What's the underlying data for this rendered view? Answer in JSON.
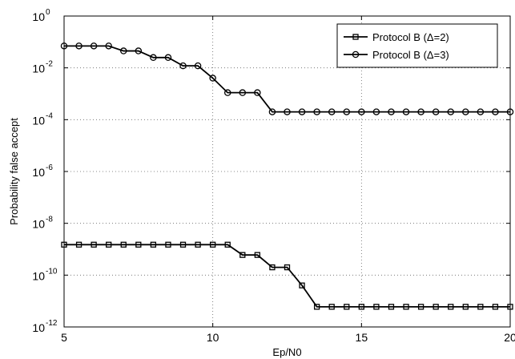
{
  "chart_data": {
    "type": "line",
    "title": "",
    "xlabel": "Ep/N0",
    "ylabel": "Probability false accept",
    "xlim": [
      5,
      20
    ],
    "ylim": [
      1e-12,
      1
    ],
    "yscale": "log",
    "grid": true,
    "legend_position": "top-right",
    "x_ticks": [
      5,
      10,
      15,
      20
    ],
    "y_ticks": [
      {
        "base": "10",
        "exp": "0",
        "value": 1
      },
      {
        "base": "10",
        "exp": "-2",
        "value": 0.01
      },
      {
        "base": "10",
        "exp": "-4",
        "value": 0.0001
      },
      {
        "base": "10",
        "exp": "-6",
        "value": 1e-06
      },
      {
        "base": "10",
        "exp": "-8",
        "value": 1e-08
      },
      {
        "base": "10",
        "exp": "-10",
        "value": 1e-10
      },
      {
        "base": "10",
        "exp": "-12",
        "value": 1e-12
      }
    ],
    "x": [
      5,
      5.5,
      6,
      6.5,
      7,
      7.5,
      8,
      8.5,
      9,
      9.5,
      10,
      10.5,
      11,
      11.5,
      12,
      12.5,
      13,
      13.5,
      14,
      14.5,
      15,
      15.5,
      16,
      16.5,
      17,
      17.5,
      18,
      18.5,
      19,
      19.5,
      20
    ],
    "series": [
      {
        "name": "Protocol B (Δ=2)",
        "marker": "square",
        "color": "#000000",
        "values": [
          1.5e-09,
          1.5e-09,
          1.5e-09,
          1.5e-09,
          1.5e-09,
          1.5e-09,
          1.5e-09,
          1.5e-09,
          1.5e-09,
          1.5e-09,
          1.5e-09,
          1.5e-09,
          6e-10,
          6e-10,
          2e-10,
          2e-10,
          4e-11,
          6e-12,
          6e-12,
          6e-12,
          6e-12,
          6e-12,
          6e-12,
          6e-12,
          6e-12,
          6e-12,
          6e-12,
          6e-12,
          6e-12,
          6e-12,
          6e-12
        ]
      },
      {
        "name": "Protocol B (Δ=3)",
        "marker": "circle",
        "color": "#000000",
        "values": [
          0.07,
          0.07,
          0.07,
          0.07,
          0.045,
          0.045,
          0.025,
          0.025,
          0.012,
          0.012,
          0.004,
          0.0011,
          0.0011,
          0.0011,
          0.0002,
          0.0002,
          0.0002,
          0.0002,
          0.0002,
          0.0002,
          0.0002,
          0.0002,
          0.0002,
          0.0002,
          0.0002,
          0.0002,
          0.0002,
          0.0002,
          0.0002,
          0.0002,
          0.0002
        ]
      }
    ]
  }
}
